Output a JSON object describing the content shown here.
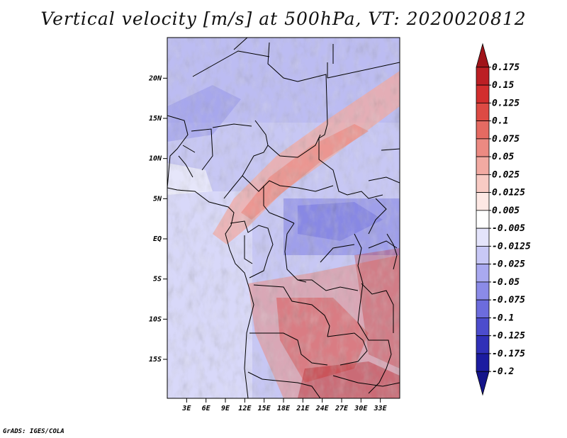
{
  "title": "Vertical velocity [m/s] at 500hPa, VT: 2020020812",
  "footer": "GrADS: IGES/COLA",
  "chart_data": {
    "type": "heatmap",
    "variable": "Vertical velocity",
    "units": "m/s",
    "level": "500hPa",
    "valid_time": "2020020812",
    "lon_range": [
      0,
      36
    ],
    "lat_range": [
      -20,
      25
    ],
    "lat_ticks": [
      {
        "label": "20N",
        "lat": 20
      },
      {
        "label": "15N",
        "lat": 15
      },
      {
        "label": "10N",
        "lat": 10
      },
      {
        "label": "5N",
        "lat": 5
      },
      {
        "label": "EQ",
        "lat": 0
      },
      {
        "label": "5S",
        "lat": -5
      },
      {
        "label": "10S",
        "lat": -10
      },
      {
        "label": "15S",
        "lat": -15
      }
    ],
    "lon_ticks": [
      {
        "label": "3E",
        "lon": 3
      },
      {
        "label": "6E",
        "lon": 6
      },
      {
        "label": "9E",
        "lon": 9
      },
      {
        "label": "12E",
        "lon": 12
      },
      {
        "label": "15E",
        "lon": 15
      },
      {
        "label": "18E",
        "lon": 18
      },
      {
        "label": "21E",
        "lon": 21
      },
      {
        "label": "24E",
        "lon": 24
      },
      {
        "label": "27E",
        "lon": 27
      },
      {
        "label": "30E",
        "lon": 30
      },
      {
        "label": "33E",
        "lon": 33
      }
    ],
    "colorbar": {
      "labels": [
        "0.175",
        "0.15",
        "0.125",
        "0.1",
        "0.075",
        "0.05",
        "0.025",
        "0.0125",
        "0.005",
        "-0.005",
        "-0.0125",
        "-0.025",
        "-0.05",
        "-0.075",
        "-0.1",
        "-0.125",
        "-0.175",
        "-0.2"
      ],
      "colors": [
        "#a0141a",
        "#bc1f24",
        "#d22e2e",
        "#dd4a44",
        "#e56a62",
        "#ec8a82",
        "#f2aaa2",
        "#f8cbc4",
        "#fde8e4",
        "#ffffff",
        "#e4e4fb",
        "#c8c8f6",
        "#a9a9f0",
        "#8b8be8",
        "#6c6cdd",
        "#4c4ccd",
        "#3030b8",
        "#1c1ca0",
        "#14148a"
      ]
    }
  }
}
